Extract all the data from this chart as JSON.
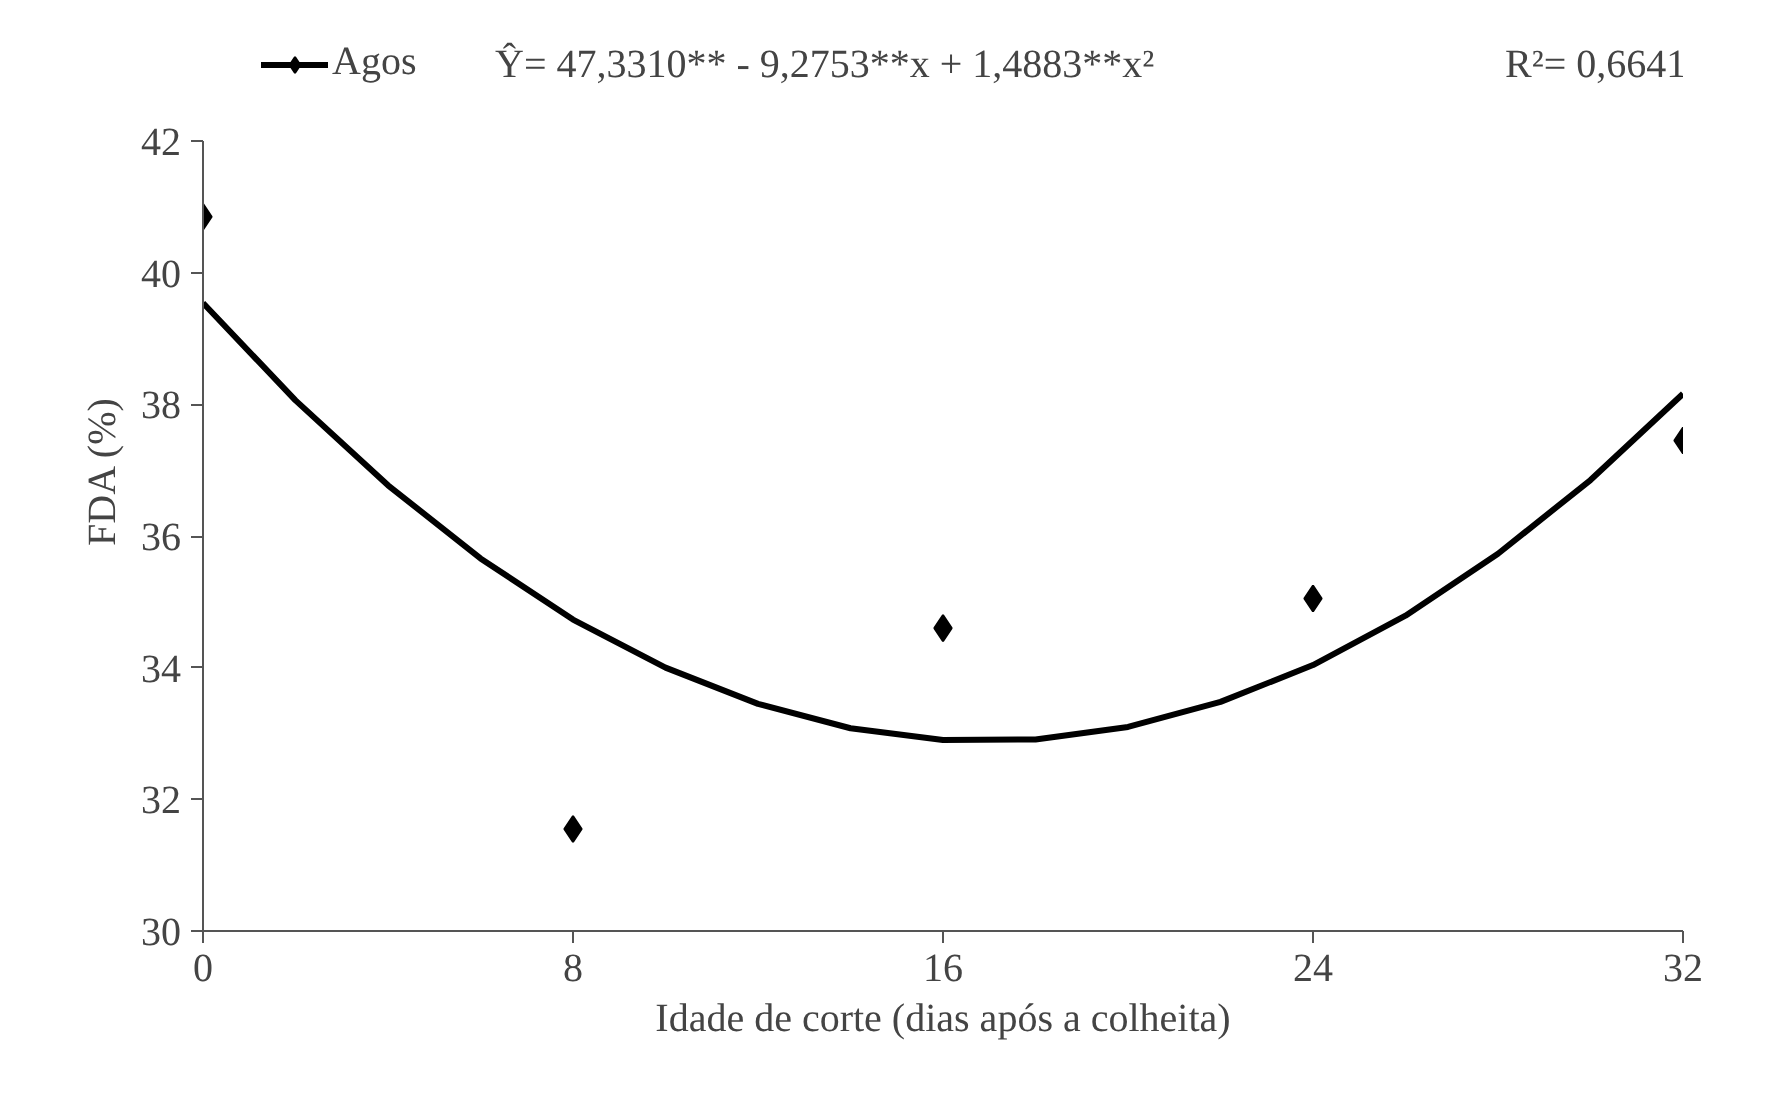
{
  "chart_data": {
    "type": "scatter",
    "xlabel": "Idade de corte (dias após a colheita)",
    "ylabel": "FDA (%)",
    "xlim": [
      0,
      32
    ],
    "xticks": [
      0,
      8,
      16,
      24,
      32
    ],
    "ylim": [
      30,
      42
    ],
    "yticks": [
      30,
      32,
      34,
      36,
      38,
      40,
      42
    ],
    "grid": false,
    "legend": "top",
    "marker": "diamond",
    "series": [
      {
        "name": "Agos",
        "color": "#000000",
        "x": [
          0,
          8,
          16,
          24,
          32
        ],
        "values": [
          40.85,
          31.55,
          34.6,
          35.05,
          37.45
        ]
      },
      {
        "type": "line",
        "color": "#000000",
        "line_style": "solid",
        "marker": "none",
        "x": [
          0,
          2,
          4,
          6,
          8,
          10,
          12,
          14,
          16,
          18,
          20,
          22,
          24,
          26,
          28,
          30,
          32
        ],
        "values": [
          39.54,
          38.06,
          36.77,
          35.66,
          34.73,
          34.0,
          33.45,
          33.08,
          32.9,
          32.91,
          33.1,
          33.48,
          34.04,
          34.79,
          35.73,
          36.85,
          38.16
        ]
      }
    ],
    "annotations": [
      "Ŷ= 47,3310** - 9,2753**x + 1,4883**x²",
      "R²= 0,6641"
    ]
  }
}
